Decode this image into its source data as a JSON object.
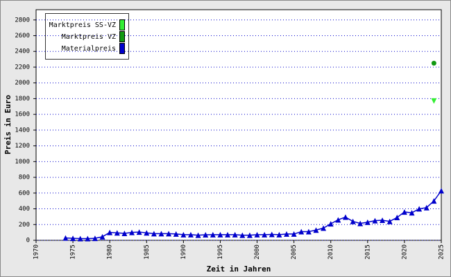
{
  "chart_data": {
    "type": "line",
    "x_label": "Zeit in Jahren",
    "y_label": "Preis in Euro",
    "xlim": [
      1970,
      2025
    ],
    "xticks": [
      1970,
      1975,
      1980,
      1985,
      1990,
      1995,
      2000,
      2005,
      2010,
      2015,
      2020,
      2025
    ],
    "ylim": [
      0,
      2930
    ],
    "yticks": [
      0,
      200,
      400,
      600,
      800,
      1000,
      1200,
      1400,
      1600,
      1800,
      2000,
      2200,
      2400,
      2600,
      2800
    ],
    "grid": true,
    "legend_position": "upper-left",
    "series": [
      {
        "name": "Marktpreis SS-VZ",
        "color": "#33ee33",
        "marker": "triangle-down",
        "line": false,
        "x": [
          2024
        ],
        "values": [
          1770
        ]
      },
      {
        "name": "Marktpreis VZ",
        "color": "#119911",
        "marker": "circle",
        "line": false,
        "x": [
          2024
        ],
        "values": [
          2250
        ]
      },
      {
        "name": "Materialpreis",
        "color": "#0000cc",
        "marker": "triangle-up",
        "line": true,
        "x": [
          1974,
          1975,
          1976,
          1977,
          1978,
          1979,
          1980,
          1981,
          1982,
          1983,
          1984,
          1985,
          1986,
          1987,
          1988,
          1989,
          1990,
          1991,
          1992,
          1993,
          1994,
          1995,
          1996,
          1997,
          1998,
          1999,
          2000,
          2001,
          2002,
          2003,
          2004,
          2005,
          2006,
          2007,
          2008,
          2009,
          2010,
          2011,
          2012,
          2013,
          2014,
          2015,
          2016,
          2017,
          2018,
          2019,
          2020,
          2021,
          2022,
          2023,
          2024,
          2025
        ],
        "values": [
          30,
          25,
          22,
          22,
          25,
          45,
          100,
          95,
          88,
          100,
          105,
          95,
          85,
          85,
          85,
          80,
          72,
          72,
          65,
          70,
          72,
          72,
          72,
          72,
          65,
          65,
          72,
          72,
          75,
          72,
          80,
          80,
          110,
          110,
          130,
          155,
          210,
          260,
          295,
          240,
          215,
          230,
          250,
          255,
          240,
          290,
          360,
          350,
          400,
          415,
          500,
          630
        ]
      }
    ]
  }
}
